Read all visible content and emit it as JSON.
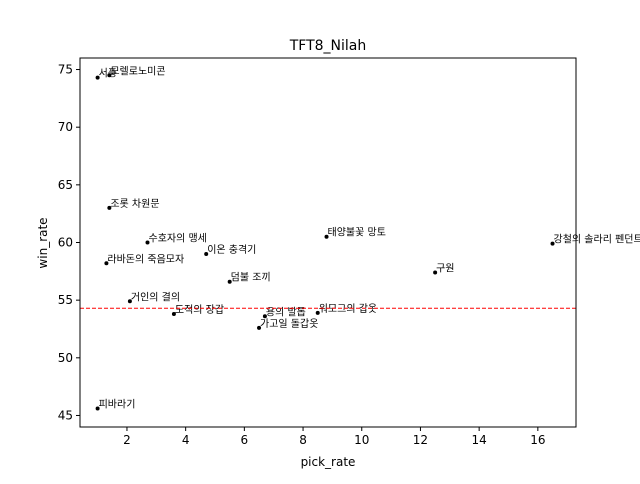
{
  "chart_data": {
    "type": "scatter",
    "title": "TFT8_Nilah",
    "xlabel": "pick_rate",
    "ylabel": "win_rate",
    "xlim": [
      0.4,
      17.3
    ],
    "ylim": [
      44.0,
      76.0
    ],
    "xticks": [
      2,
      4,
      6,
      8,
      10,
      12,
      14,
      16
    ],
    "yticks": [
      45,
      50,
      55,
      60,
      65,
      70,
      75
    ],
    "grid": false,
    "reference_line": {
      "axis": "y",
      "value": 54.3,
      "color": "#ff0000",
      "style": "dashed"
    },
    "marker_color": "#000000",
    "points": [
      {
        "label": "서풍",
        "x": 1.0,
        "y": 74.3
      },
      {
        "label": "모렐로노미콘",
        "x": 1.4,
        "y": 74.5
      },
      {
        "label": "조롯 차원문",
        "x": 1.4,
        "y": 63.0
      },
      {
        "label": "수호자의 맹세",
        "x": 2.7,
        "y": 60.0
      },
      {
        "label": "라바돈의 죽음모자",
        "x": 1.3,
        "y": 58.2
      },
      {
        "label": "이온 충격기",
        "x": 4.7,
        "y": 59.0
      },
      {
        "label": "태양불꽃 망토",
        "x": 8.8,
        "y": 60.5
      },
      {
        "label": "강철의 솔라리 펜던트",
        "x": 16.5,
        "y": 59.9
      },
      {
        "label": "구원",
        "x": 12.5,
        "y": 57.4
      },
      {
        "label": "덤불 조끼",
        "x": 5.5,
        "y": 56.6
      },
      {
        "label": "거인의 결의",
        "x": 2.1,
        "y": 54.9
      },
      {
        "label": "도적의 장갑",
        "x": 3.6,
        "y": 53.8
      },
      {
        "label": "용의 발톱",
        "x": 6.7,
        "y": 53.6
      },
      {
        "label": "워모그의 갑옷",
        "x": 8.5,
        "y": 53.9
      },
      {
        "label": "가고일 돌갑옷",
        "x": 6.5,
        "y": 52.6
      },
      {
        "label": "피바라기",
        "x": 1.0,
        "y": 45.6
      }
    ]
  }
}
